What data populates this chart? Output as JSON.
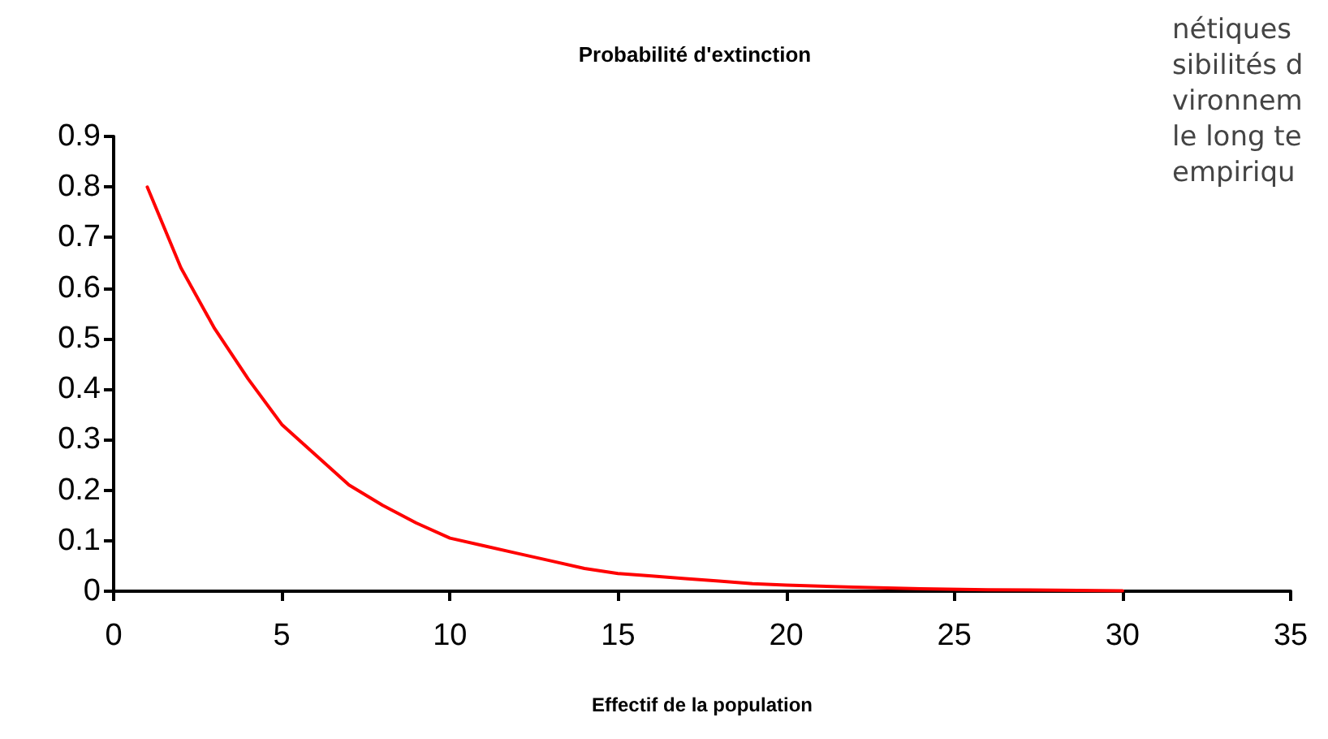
{
  "chart_data": {
    "type": "line",
    "title": "Probabilité d'extinction",
    "xlabel": "Effectif de la population",
    "x": [
      1,
      2,
      3,
      4,
      5,
      6,
      7,
      8,
      9,
      10,
      11,
      12,
      13,
      14,
      15,
      16,
      17,
      18,
      19,
      20,
      22,
      24,
      26,
      28,
      30
    ],
    "series": [
      {
        "color": "#ff0000",
        "values": [
          0.8,
          0.64,
          0.52,
          0.42,
          0.33,
          0.27,
          0.21,
          0.17,
          0.135,
          0.105,
          0.09,
          0.075,
          0.06,
          0.045,
          0.035,
          0.03,
          0.025,
          0.02,
          0.015,
          0.012,
          0.008,
          0.005,
          0.003,
          0.002,
          0.001
        ]
      }
    ],
    "xlim": [
      0,
      35
    ],
    "xticks": [
      0,
      5,
      10,
      15,
      20,
      25,
      30,
      35
    ],
    "ylim": [
      0,
      0.9
    ],
    "yticks": [
      0,
      0.1,
      0.2,
      0.3,
      0.4,
      0.5,
      0.6,
      0.7,
      0.8,
      0.9
    ],
    "grid": false,
    "marker": "none",
    "line_style": "solid",
    "annotations": [
      "nétiques",
      "sibilités d",
      "vironnem",
      "le long te",
      "empiriqu"
    ]
  }
}
